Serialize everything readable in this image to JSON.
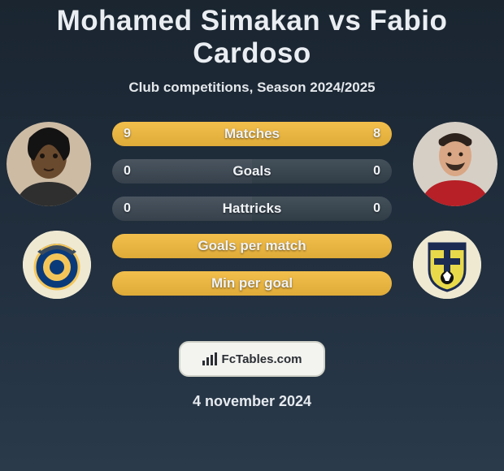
{
  "title": "Mohamed Simakan vs Fabio Cardoso",
  "subtitle": "Club competitions, Season 2024/2025",
  "date": "4 november 2024",
  "brand": {
    "label": "FcTables.com"
  },
  "colors": {
    "accent": "#f2be4c",
    "accent_shadow": "#b7872d",
    "grey_fill": "#4a5560",
    "grey_fill_alt": "#44505a",
    "text": "#eef2f5"
  },
  "players": {
    "left": {
      "name": "Mohamed Simakan",
      "club": "Al Nassr"
    },
    "right": {
      "name": "Fabio Cardoso",
      "club": "NK Inter Zaprešić"
    }
  },
  "stats": [
    {
      "key": "matches",
      "label": "Matches",
      "left_value": "9",
      "right_value": "8",
      "left_pct": 53,
      "left_color": "#f2be4c",
      "right_color": "#f2be4c"
    },
    {
      "key": "goals",
      "label": "Goals",
      "left_value": "0",
      "right_value": "0",
      "left_pct": 50,
      "left_color": "#4a5560",
      "right_color": "#44505a"
    },
    {
      "key": "hattricks",
      "label": "Hattricks",
      "left_value": "0",
      "right_value": "0",
      "left_pct": 50,
      "left_color": "#4a5560",
      "right_color": "#44505a"
    },
    {
      "key": "goals_per_match",
      "label": "Goals per match",
      "left_value": "",
      "right_value": "",
      "left_pct": 50,
      "left_color": "#f2be4c",
      "right_color": "#f2be4c"
    },
    {
      "key": "min_per_goal",
      "label": "Min per goal",
      "left_value": "",
      "right_value": "",
      "left_pct": 50,
      "left_color": "#f2be4c",
      "right_color": "#f2be4c"
    }
  ]
}
